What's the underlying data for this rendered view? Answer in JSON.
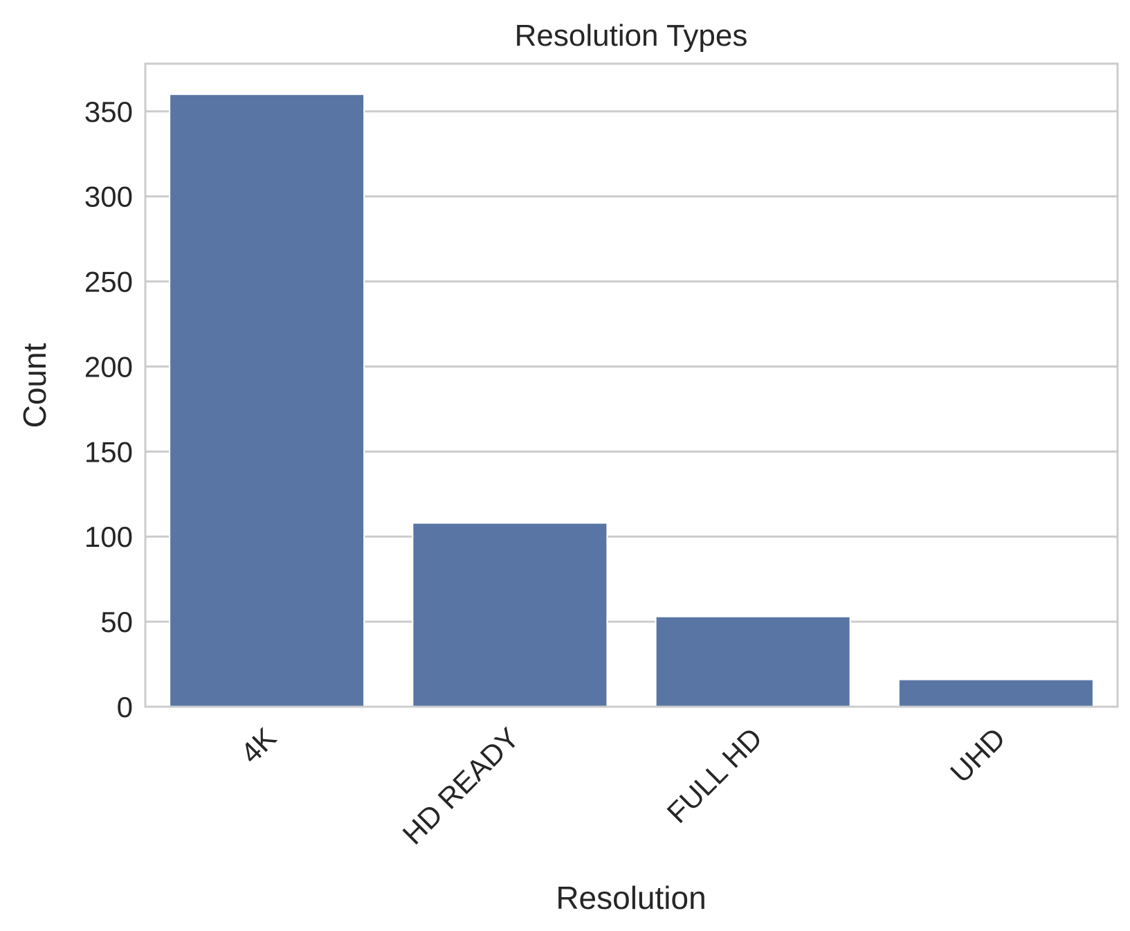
{
  "chart_data": {
    "type": "bar",
    "title": "Resolution Types",
    "xlabel": "Resolution",
    "ylabel": "Count",
    "categories": [
      "4K",
      "HD READY",
      "FULL HD",
      "UHD"
    ],
    "values": [
      360,
      108,
      53,
      16
    ],
    "ylim": [
      0,
      378
    ],
    "yticks": [
      0,
      50,
      100,
      150,
      200,
      250,
      300,
      350
    ],
    "grid": "horizontal",
    "legend": "none",
    "x_tick_rotation": 45,
    "colors": {
      "bar": "#5875a4",
      "grid": "#cccccc",
      "axes_edge": "#cccccc",
      "text": "#262626",
      "background": "#ffffff"
    }
  }
}
